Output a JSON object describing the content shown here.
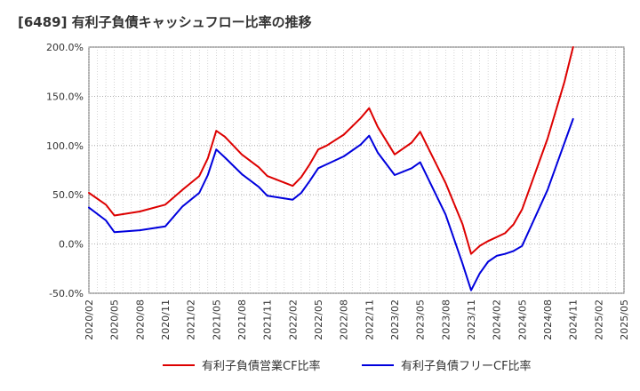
{
  "chart_data": {
    "type": "line",
    "title": "[6489]  有利子負債キャッシュフロー比率の推移",
    "xlabel": "",
    "ylabel": "",
    "ylim": [
      -50,
      200
    ],
    "yticks": [
      -50,
      0,
      50,
      100,
      150,
      200
    ],
    "ytick_labels": [
      "-50.0%",
      "0.0%",
      "50.0%",
      "100.0%",
      "150.0%",
      "200.0%"
    ],
    "xlim": [
      "2020/02",
      "2025/05"
    ],
    "x_tick_labels": [
      "2020/02",
      "2020/05",
      "2020/08",
      "2020/11",
      "2021/02",
      "2021/05",
      "2021/08",
      "2021/11",
      "2022/02",
      "2022/05",
      "2022/08",
      "2022/11",
      "2023/02",
      "2023/05",
      "2023/08",
      "2023/11",
      "2024/02",
      "2024/05",
      "2024/08",
      "2024/11",
      "2025/02",
      "2025/05"
    ],
    "grid": true,
    "legend_position": "bottom",
    "series": [
      {
        "name": "有利子負債営業CF比率",
        "color": "#dd0000",
        "points": [
          [
            "2020/02",
            52
          ],
          [
            "2020/04",
            40
          ],
          [
            "2020/05",
            29
          ],
          [
            "2020/08",
            33
          ],
          [
            "2020/11",
            40
          ],
          [
            "2021/01",
            55
          ],
          [
            "2021/02",
            62
          ],
          [
            "2021/03",
            69
          ],
          [
            "2021/04",
            87
          ],
          [
            "2021/05",
            115
          ],
          [
            "2021/06",
            109
          ],
          [
            "2021/08",
            91
          ],
          [
            "2021/10",
            78
          ],
          [
            "2021/11",
            69
          ],
          [
            "2022/02",
            59
          ],
          [
            "2022/03",
            68
          ],
          [
            "2022/04",
            81
          ],
          [
            "2022/05",
            96
          ],
          [
            "2022/06",
            100
          ],
          [
            "2022/08",
            111
          ],
          [
            "2022/10",
            128
          ],
          [
            "2022/11",
            138
          ],
          [
            "2022/12",
            119
          ],
          [
            "2023/02",
            91
          ],
          [
            "2023/04",
            103
          ],
          [
            "2023/05",
            114
          ],
          [
            "2023/08",
            62
          ],
          [
            "2023/10",
            20
          ],
          [
            "2023/11",
            -10
          ],
          [
            "2023/12",
            -2
          ],
          [
            "2024/01",
            3
          ],
          [
            "2024/03",
            11
          ],
          [
            "2024/04",
            20
          ],
          [
            "2024/05",
            35
          ],
          [
            "2024/08",
            107
          ],
          [
            "2024/10",
            165
          ],
          [
            "2024/11",
            200
          ]
        ]
      },
      {
        "name": "有利子負債フリーCF比率",
        "color": "#0000dd",
        "points": [
          [
            "2020/02",
            37
          ],
          [
            "2020/04",
            24
          ],
          [
            "2020/05",
            12
          ],
          [
            "2020/08",
            14
          ],
          [
            "2020/11",
            18
          ],
          [
            "2021/01",
            38
          ],
          [
            "2021/02",
            45
          ],
          [
            "2021/03",
            52
          ],
          [
            "2021/04",
            70
          ],
          [
            "2021/05",
            96
          ],
          [
            "2021/06",
            88
          ],
          [
            "2021/08",
            71
          ],
          [
            "2021/10",
            58
          ],
          [
            "2021/11",
            49
          ],
          [
            "2022/02",
            45
          ],
          [
            "2022/03",
            52
          ],
          [
            "2022/04",
            64
          ],
          [
            "2022/05",
            77
          ],
          [
            "2022/06",
            81
          ],
          [
            "2022/08",
            89
          ],
          [
            "2022/10",
            101
          ],
          [
            "2022/11",
            110
          ],
          [
            "2022/12",
            93
          ],
          [
            "2023/02",
            70
          ],
          [
            "2023/04",
            77
          ],
          [
            "2023/05",
            83
          ],
          [
            "2023/08",
            30
          ],
          [
            "2023/10",
            -20
          ],
          [
            "2023/11",
            -47
          ],
          [
            "2023/12",
            -30
          ],
          [
            "2024/01",
            -18
          ],
          [
            "2024/02",
            -12
          ],
          [
            "2024/03",
            -10
          ],
          [
            "2024/04",
            -7
          ],
          [
            "2024/05",
            -2
          ],
          [
            "2024/08",
            55
          ],
          [
            "2024/11",
            127
          ]
        ]
      }
    ]
  }
}
